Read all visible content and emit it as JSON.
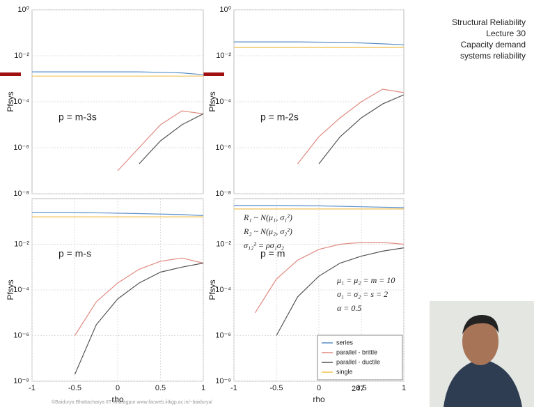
{
  "slide": {
    "title_lines": [
      "Structural Reliability",
      "Lecture 30",
      "Capacity demand",
      "systems reliability"
    ],
    "footer": "©Baidurya Bhattacharya   IIT Kharagpur   www.facweb.iitkgp.ac.in/~baidurya/",
    "page_number": "247"
  },
  "chart_data": [
    {
      "type": "line",
      "annotation": "p = m-3s",
      "ylabel": "Pfsys",
      "log_y": true,
      "grid": true,
      "x": [
        -1,
        -0.75,
        -0.5,
        -0.25,
        0,
        0.25,
        0.5,
        0.75,
        1
      ],
      "xlim": [
        -1,
        1
      ],
      "ylim": [
        1e-08,
        1
      ],
      "yticks": [
        {
          "value": 1,
          "label": "10⁰"
        },
        {
          "value": 0.01,
          "label": "10⁻²"
        },
        {
          "value": 0.0001,
          "label": "10⁻⁴"
        },
        {
          "value": 1e-06,
          "label": "10⁻⁶"
        },
        {
          "value": 1e-08,
          "label": "10⁻⁸"
        }
      ],
      "series": [
        {
          "color": "#5b8fc7",
          "values": [
            0.002,
            0.002,
            0.002,
            0.002,
            0.002,
            0.002,
            0.0019,
            0.0018,
            0.0015
          ]
        },
        {
          "color": "#e08a80",
          "values": [
            null,
            null,
            null,
            null,
            1e-07,
            1e-06,
            1e-05,
            4e-05,
            3e-05
          ]
        },
        {
          "color": "#555555",
          "values": [
            null,
            null,
            null,
            null,
            null,
            2e-07,
            2e-06,
            1e-05,
            3e-05
          ]
        },
        {
          "color": "#f0c050",
          "values": [
            0.0013,
            0.0013,
            0.0013,
            0.0013,
            0.0013,
            0.0013,
            0.0013,
            0.0013,
            0.0013
          ]
        }
      ]
    },
    {
      "type": "line",
      "annotation": "p = m-2s",
      "ylabel": "Pfsys",
      "log_y": true,
      "grid": true,
      "x": [
        -1,
        -0.75,
        -0.5,
        -0.25,
        0,
        0.25,
        0.5,
        0.75,
        1
      ],
      "xlim": [
        -1,
        1
      ],
      "ylim": [
        1e-08,
        1
      ],
      "yticks": [
        {
          "value": 1,
          "label": "10⁰"
        },
        {
          "value": 0.01,
          "label": "10⁻²"
        },
        {
          "value": 0.0001,
          "label": "10⁻⁴"
        },
        {
          "value": 1e-06,
          "label": "10⁻⁶"
        },
        {
          "value": 1e-08,
          "label": "10⁻⁸"
        }
      ],
      "series": [
        {
          "color": "#5b8fc7",
          "values": [
            0.04,
            0.04,
            0.04,
            0.04,
            0.039,
            0.038,
            0.036,
            0.033,
            0.03
          ]
        },
        {
          "color": "#e08a80",
          "values": [
            null,
            null,
            null,
            2e-07,
            3e-06,
            2e-05,
            0.0001,
            0.00035,
            0.00025
          ]
        },
        {
          "color": "#555555",
          "values": [
            null,
            null,
            null,
            null,
            2e-07,
            3e-06,
            2e-05,
            8e-05,
            0.0002
          ]
        },
        {
          "color": "#f0c050",
          "values": [
            0.023,
            0.023,
            0.023,
            0.023,
            0.023,
            0.023,
            0.023,
            0.023,
            0.023
          ]
        }
      ]
    },
    {
      "type": "line",
      "annotation": "p = m-s",
      "ylabel": "Pfsys",
      "xlabel": "rho",
      "log_y": true,
      "grid": true,
      "x": [
        -1,
        -0.75,
        -0.5,
        -0.25,
        0,
        0.25,
        0.5,
        0.75,
        1
      ],
      "xlim": [
        -1,
        1
      ],
      "ylim": [
        1e-08,
        1
      ],
      "xticks": [
        -1,
        -0.5,
        0,
        0.5,
        1
      ],
      "yticks": [
        {
          "value": 0.01,
          "label": "10⁻²"
        },
        {
          "value": 0.0001,
          "label": "10⁻⁴"
        },
        {
          "value": 1e-06,
          "label": "10⁻⁶"
        },
        {
          "value": 1e-08,
          "label": "10⁻⁸"
        }
      ],
      "series": [
        {
          "color": "#5b8fc7",
          "values": [
            0.25,
            0.25,
            0.25,
            0.24,
            0.23,
            0.22,
            0.21,
            0.2,
            0.18
          ]
        },
        {
          "color": "#e08a80",
          "values": [
            null,
            null,
            1e-06,
            3e-05,
            0.0002,
            0.0008,
            0.0018,
            0.0025,
            0.0015
          ]
        },
        {
          "color": "#555555",
          "values": [
            null,
            null,
            2e-08,
            3e-06,
            4e-05,
            0.0002,
            0.0006,
            0.001,
            0.0015
          ]
        },
        {
          "color": "#f0c050",
          "values": [
            0.16,
            0.16,
            0.16,
            0.16,
            0.16,
            0.16,
            0.16,
            0.16,
            0.16
          ]
        }
      ]
    },
    {
      "type": "line",
      "annotation": "p = m",
      "ylabel": "Pfsys",
      "xlabel": "rho",
      "log_y": true,
      "grid": true,
      "legend": "lower right",
      "formulas": [
        "R₁ ~ N(μ₁, σ₁²)",
        "R₂ ~ N(μ₂, σ₂²)",
        "σ₁₂² = ρσ₁σ₂",
        "μ₁ = μ₂ = m = 10",
        "σ₁ = σ₂ = s = 2",
        "α = 0.5"
      ],
      "x": [
        -1,
        -0.75,
        -0.5,
        -0.25,
        0,
        0.25,
        0.5,
        0.75,
        1
      ],
      "xlim": [
        -1,
        1
      ],
      "ylim": [
        1e-08,
        1
      ],
      "xticks": [
        -1,
        -0.5,
        0,
        0.5,
        1
      ],
      "yticks": [
        {
          "value": 0.01,
          "label": "10⁻²"
        },
        {
          "value": 0.0001,
          "label": "10⁻⁴"
        },
        {
          "value": 1e-06,
          "label": "10⁻⁶"
        },
        {
          "value": 1e-08,
          "label": "10⁻⁸"
        }
      ],
      "series": [
        {
          "name": "series",
          "color": "#5b8fc7",
          "values": [
            0.5,
            0.5,
            0.5,
            0.49,
            0.48,
            0.46,
            0.44,
            0.42,
            0.4
          ]
        },
        {
          "name": "parallel - brittle",
          "color": "#e08a80",
          "values": [
            null,
            1e-05,
            0.0003,
            0.002,
            0.006,
            0.01,
            0.012,
            0.012,
            0.01
          ]
        },
        {
          "name": "parallel - ductile",
          "color": "#555555",
          "values": [
            null,
            null,
            1e-06,
            5e-05,
            0.0004,
            0.0015,
            0.003,
            0.005,
            0.007
          ]
        },
        {
          "name": "single",
          "color": "#f0c050",
          "values": [
            0.35,
            0.35,
            0.35,
            0.35,
            0.35,
            0.35,
            0.35,
            0.35,
            0.35
          ]
        }
      ]
    }
  ]
}
